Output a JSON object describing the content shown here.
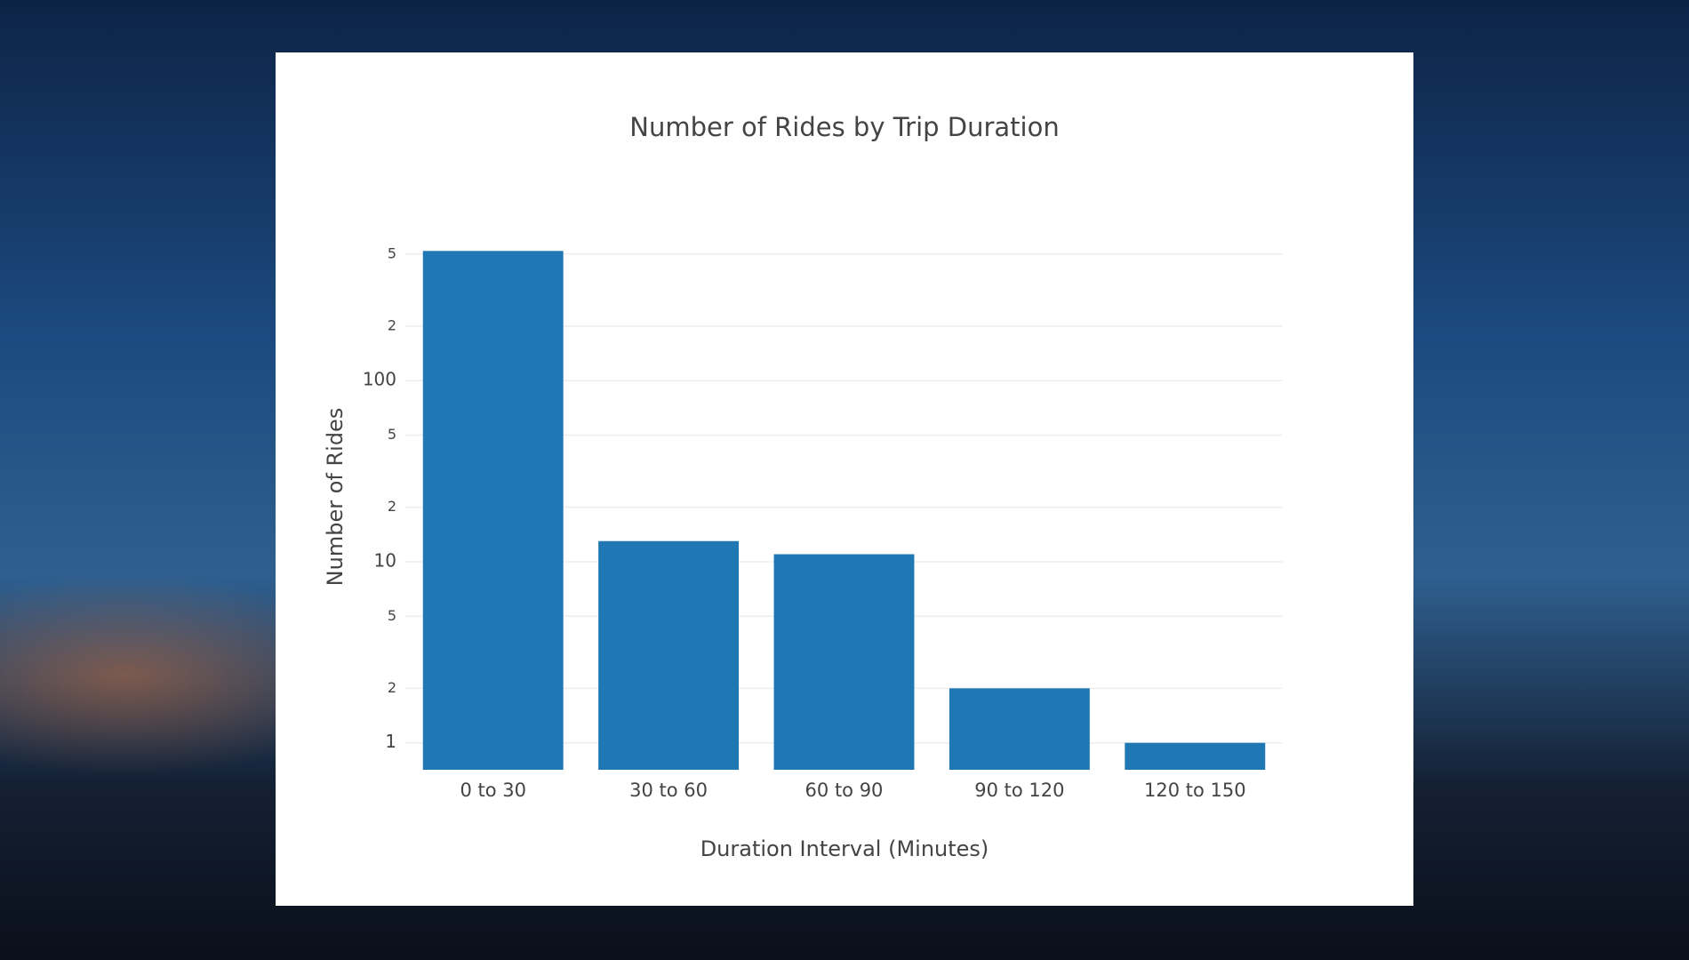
{
  "chart_data": {
    "type": "bar",
    "title": "Number of Rides by Trip Duration",
    "x_label": "Duration Interval (Minutes)",
    "y_label": "Number of Rides",
    "categories": [
      "0 to 30",
      "30 to 60",
      "60 to 90",
      "90 to 120",
      "120 to 150"
    ],
    "values": [
      520,
      13,
      11,
      2,
      1
    ],
    "color": "#1f77b4",
    "y_scale": "log",
    "ylim": [
      0.71,
      700
    ],
    "yticks": [
      1,
      2,
      5,
      10,
      {
        "value": 20,
        "label": "2"
      },
      {
        "value": 50,
        "label": "5"
      },
      100,
      {
        "value": 200,
        "label": "2"
      },
      {
        "value": 500,
        "label": "5"
      }
    ],
    "grid": true
  }
}
